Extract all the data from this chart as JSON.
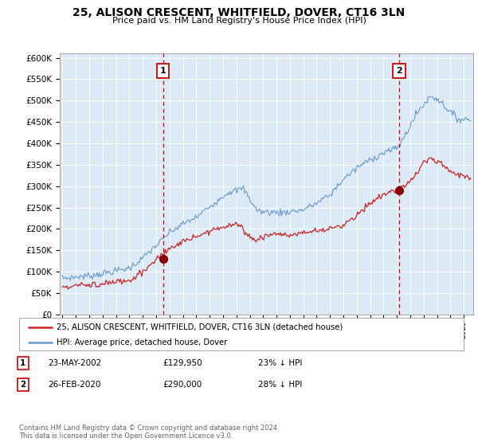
{
  "title": "25, ALISON CRESCENT, WHITFIELD, DOVER, CT16 3LN",
  "subtitle": "Price paid vs. HM Land Registry's House Price Index (HPI)",
  "background_color": "#ffffff",
  "plot_bg_color": "#dce9f7",
  "yticks": [
    0,
    50000,
    100000,
    150000,
    200000,
    250000,
    300000,
    350000,
    400000,
    450000,
    500000,
    550000,
    600000
  ],
  "ytick_labels": [
    "£0",
    "£50K",
    "£100K",
    "£150K",
    "£200K",
    "£250K",
    "£300K",
    "£350K",
    "£400K",
    "£450K",
    "£500K",
    "£550K",
    "£600K"
  ],
  "hpi_color": "#6699cc",
  "price_color": "#cc2222",
  "marker1_year_idx": 90,
  "marker2_year_idx": 301,
  "marker1_price": 129950,
  "marker2_price": 290000,
  "legend_entry1": "25, ALISON CRESCENT, WHITFIELD, DOVER, CT16 3LN (detached house)",
  "legend_entry2": "HPI: Average price, detached house, Dover",
  "table_row1": [
    "1",
    "23-MAY-2002",
    "£129,950",
    "23% ↓ HPI"
  ],
  "table_row2": [
    "2",
    "26-FEB-2020",
    "£290,000",
    "28% ↓ HPI"
  ],
  "footnote1": "Contains HM Land Registry data © Crown copyright and database right 2024.",
  "footnote2": "This data is licensed under the Open Government Licence v3.0."
}
